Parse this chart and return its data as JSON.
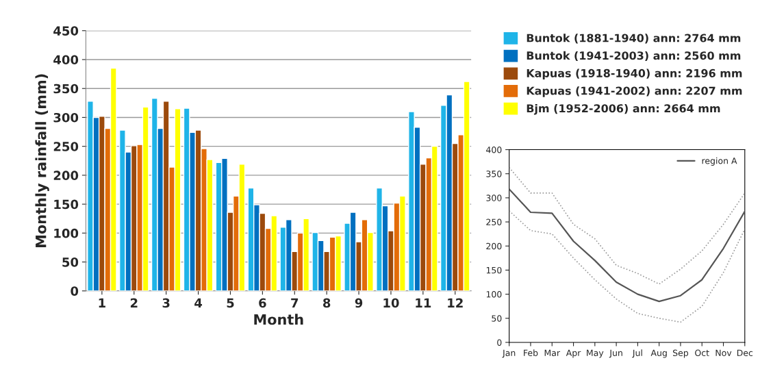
{
  "chart_data": [
    {
      "type": "bar",
      "xlabel": "Month",
      "ylabel": "Monthly rainfall (mm)",
      "categories": [
        "1",
        "2",
        "3",
        "4",
        "5",
        "6",
        "7",
        "8",
        "9",
        "10",
        "11",
        "12"
      ],
      "ylim": [
        0,
        450
      ],
      "yticks": [
        0,
        50,
        100,
        150,
        200,
        250,
        300,
        350,
        400,
        450
      ],
      "grid": "y",
      "legend": "right",
      "series": [
        {
          "name": "Buntok (1881-1940) ann: 2764 mm",
          "color": "#1fb4e8",
          "values": [
            328,
            278,
            333,
            316,
            222,
            178,
            110,
            101,
            117,
            178,
            310,
            321
          ]
        },
        {
          "name": "Buntok (1941-2003) ann: 2560 mm",
          "color": "#0070c0",
          "values": [
            300,
            240,
            281,
            274,
            229,
            149,
            123,
            87,
            136,
            147,
            283,
            339
          ]
        },
        {
          "name": "Kapuas (1918-1940) ann: 2196 mm",
          "color": "#9c4a0c",
          "values": [
            302,
            251,
            328,
            278,
            136,
            134,
            68,
            68,
            85,
            104,
            219,
            255
          ]
        },
        {
          "name": "Kapuas (1941-2002) ann: 2207 mm",
          "color": "#e36c09",
          "values": [
            281,
            253,
            214,
            246,
            164,
            108,
            100,
            93,
            123,
            152,
            230,
            270
          ]
        },
        {
          "name": "Bjm (1952-2006) ann: 2664 mm",
          "color": "#ffff00",
          "values": [
            385,
            318,
            315,
            227,
            219,
            130,
            125,
            95,
            101,
            164,
            250,
            362
          ]
        }
      ]
    },
    {
      "type": "line",
      "categories": [
        "Jan",
        "Feb",
        "Mar",
        "Apr",
        "May",
        "Jun",
        "Jul",
        "Aug",
        "Sep",
        "Oct",
        "Nov",
        "Dec"
      ],
      "ylim": [
        0,
        400
      ],
      "yticks": [
        0,
        50,
        100,
        150,
        200,
        250,
        300,
        350,
        400
      ],
      "grid": false,
      "legend": "top right",
      "line_style": "solid",
      "series": [
        {
          "name": "region A",
          "color": "#555555",
          "values": [
            318,
            270,
            268,
            210,
            170,
            125,
            100,
            85,
            97,
            130,
            195,
            272
          ]
        },
        {
          "color": "#999999",
          "line_style": "dotted",
          "values": [
            363,
            310,
            310,
            245,
            215,
            160,
            143,
            121,
            152,
            190,
            245,
            310
          ]
        },
        {
          "color": "#999999",
          "line_style": "dotted",
          "values": [
            273,
            232,
            225,
            175,
            130,
            90,
            60,
            50,
            42,
            75,
            145,
            235
          ]
        }
      ]
    }
  ]
}
